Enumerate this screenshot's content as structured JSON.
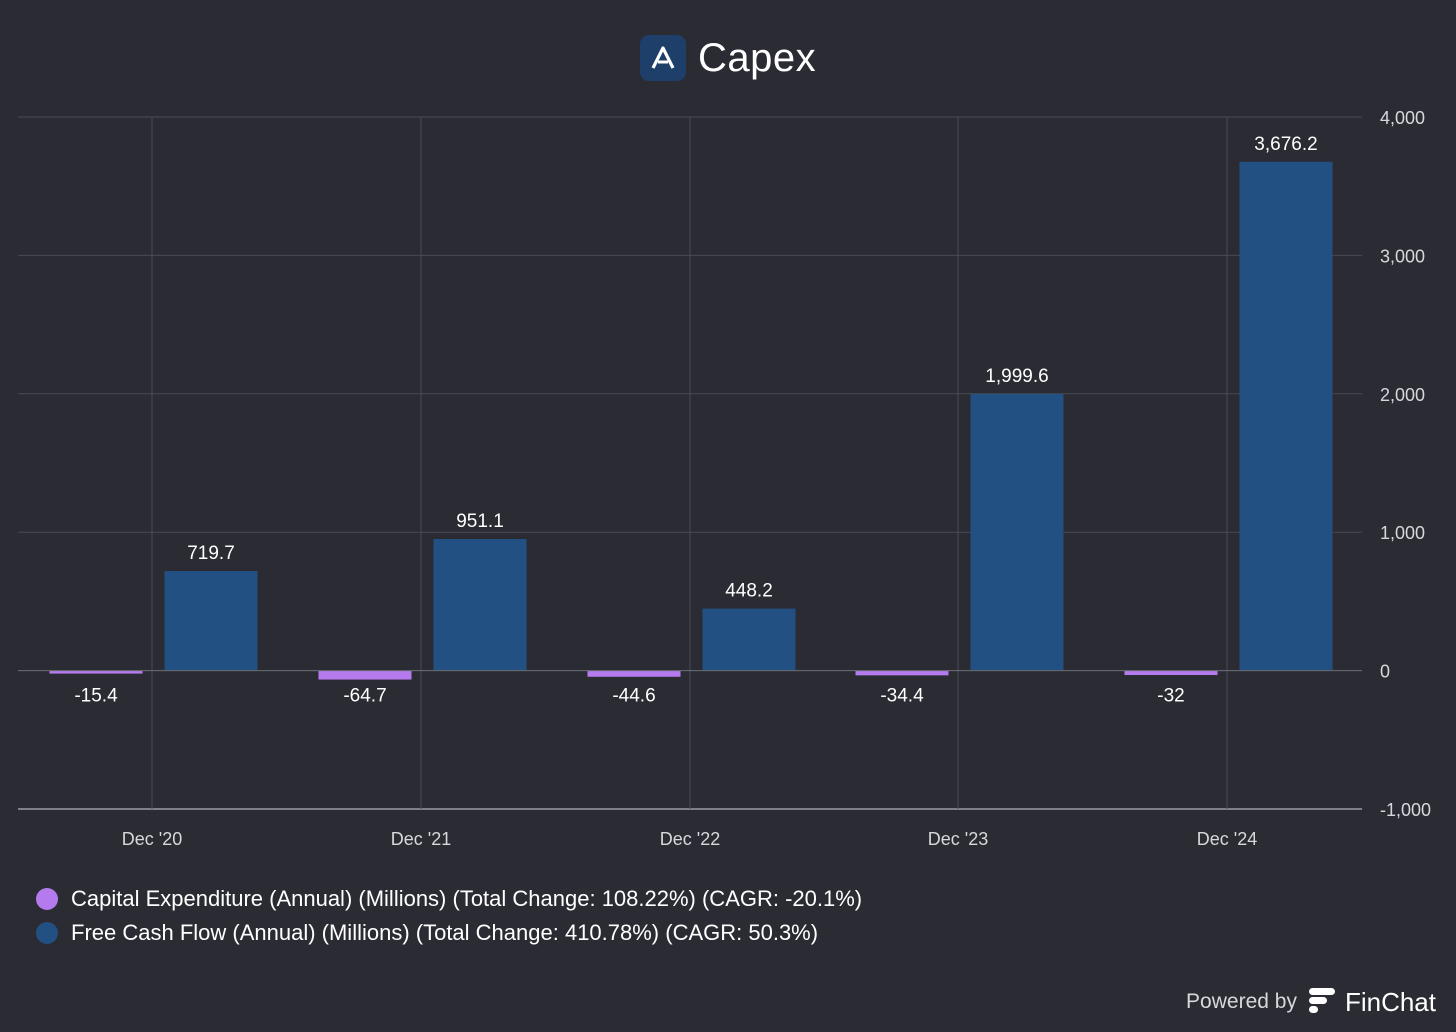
{
  "header": {
    "title": "Capex"
  },
  "chart_data": {
    "type": "bar",
    "title": "Capex",
    "categories": [
      "Dec '20",
      "Dec '21",
      "Dec '22",
      "Dec '23",
      "Dec '24"
    ],
    "series": [
      {
        "name": "Capital Expenditure (Annual) (Millions) (Total Change: 108.22%) (CAGR: -20.1%)",
        "color": "#b57bee",
        "values": [
          -15.4,
          -64.7,
          -44.6,
          -34.4,
          -32
        ],
        "labels": [
          "-15.4",
          "-64.7",
          "-44.6",
          "-34.4",
          "-32"
        ]
      },
      {
        "name": "Free Cash Flow (Annual) (Millions) (Total Change: 410.78%) (CAGR: 50.3%)",
        "color": "#235082",
        "values": [
          719.7,
          951.1,
          448.2,
          1999.6,
          3676.2
        ],
        "labels": [
          "719.7",
          "951.1",
          "448.2",
          "1,999.6",
          "3,676.2"
        ]
      }
    ],
    "ylim": [
      -1000,
      4000
    ],
    "yticks": [
      {
        "value": 4000,
        "label": "4,000"
      },
      {
        "value": 3000,
        "label": "3,000"
      },
      {
        "value": 2000,
        "label": "2,000"
      },
      {
        "value": 1000,
        "label": "1,000"
      },
      {
        "value": 0,
        "label": "0"
      },
      {
        "value": -1000,
        "label": "-1,000"
      }
    ],
    "y_axis_side": "right",
    "grid": true,
    "legend_placement": "bottom-left"
  },
  "footer": {
    "powered_by": "Powered by",
    "brand": "FinChat"
  },
  "colors": {
    "background": "#2a2b33",
    "grid": "#4a4b55",
    "text": "#ffffff",
    "tick_text": "#d7d8de"
  }
}
